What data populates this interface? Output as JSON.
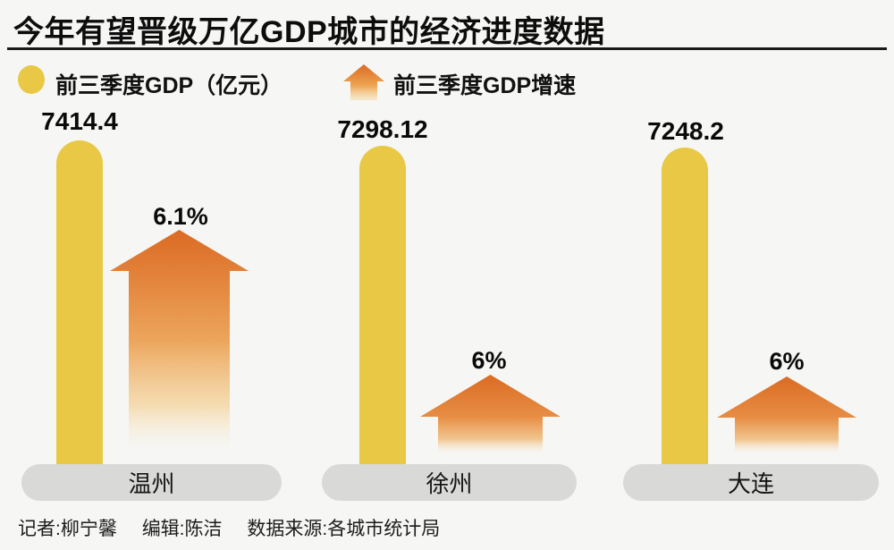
{
  "title": "今年有望晋级万亿GDP城市的经济进度数据",
  "legend": {
    "gdp_label": "前三季度GDP（亿元）",
    "growth_label": "前三季度GDP增速"
  },
  "colors": {
    "background": "#f6f6f4",
    "bar_yellow": "#e8c845",
    "arrow_orange_top": "#db6b24",
    "arrow_fade_bottom": "#f7e9ce",
    "pill_gray": "#d9d9d8",
    "text_black": "#0d0d0d"
  },
  "chart_data": {
    "type": "bar",
    "title": "今年有望晋级万亿GDP城市的经济进度数据",
    "categories": [
      "温州",
      "徐州",
      "大连"
    ],
    "series": [
      {
        "name": "前三季度GDP（亿元）",
        "type": "bar",
        "color": "#e8c845",
        "values": [
          7414.4,
          7298.12,
          7248.2
        ],
        "labels": [
          "7414.4",
          "7298.12",
          "7248.2"
        ]
      },
      {
        "name": "前三季度GDP增速",
        "type": "arrow",
        "unit": "%",
        "values": [
          6.1,
          6,
          6
        ],
        "labels": [
          "6.1%",
          "6%",
          "6%"
        ]
      }
    ],
    "legend_position": "top",
    "grid": false,
    "value_axis_visible": false
  },
  "footer": {
    "reporter": "记者:柳宁馨",
    "editor": "编辑:陈洁",
    "source": "数据来源:各城市统计局"
  }
}
